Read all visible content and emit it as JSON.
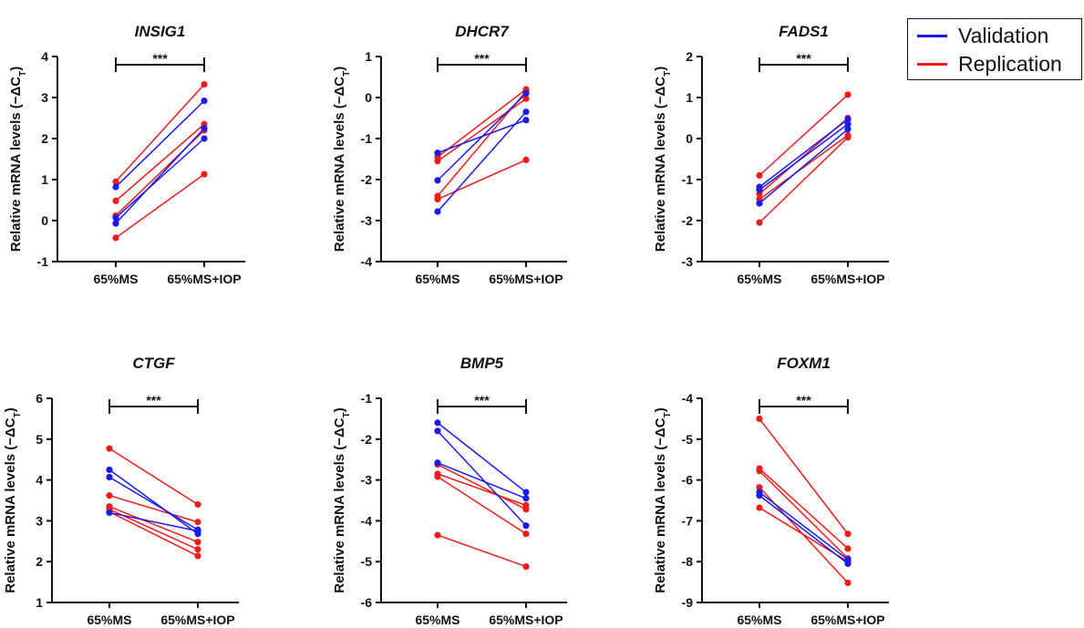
{
  "colors": {
    "validation": "#1a1aee",
    "replication": "#ee1c1c",
    "axis": "#111111"
  },
  "legend": [
    {
      "label": "Validation",
      "color": "#1a1aee"
    },
    {
      "label": "Replication",
      "color": "#ee1c1c"
    }
  ],
  "chart_data": [
    {
      "type": "line",
      "title": "INSIG1",
      "ylabel": "Relative mRNA levels (−ΔC_T)",
      "categories": [
        "65%MS",
        "65%MS+IOP"
      ],
      "ylim": [
        -1,
        4
      ],
      "yticks": [
        -1,
        0,
        1,
        2,
        3,
        4
      ],
      "significance": "***",
      "series": [
        {
          "name": "Validation",
          "lines": [
            [
              0.82,
              2.92
            ],
            [
              0.07,
              2.0
            ],
            [
              -0.07,
              2.25
            ]
          ]
        },
        {
          "name": "Replication",
          "lines": [
            [
              0.95,
              3.32
            ],
            [
              0.48,
              2.35
            ],
            [
              0.12,
              2.2
            ],
            [
              -0.42,
              1.13
            ]
          ]
        }
      ]
    },
    {
      "type": "line",
      "title": "DHCR7",
      "ylabel": "Relative mRNA levels (−ΔC_T)",
      "categories": [
        "65%MS",
        "65%MS+IOP"
      ],
      "ylim": [
        -4,
        1
      ],
      "yticks": [
        -4,
        -3,
        -2,
        -1,
        0,
        1
      ],
      "significance": "***",
      "series": [
        {
          "name": "Validation",
          "lines": [
            [
              -1.35,
              -0.55
            ],
            [
              -2.02,
              0.1
            ],
            [
              -2.78,
              -0.35
            ]
          ]
        },
        {
          "name": "Replication",
          "lines": [
            [
              -1.45,
              0.2
            ],
            [
              -1.55,
              -0.03
            ],
            [
              -2.4,
              0.15
            ],
            [
              -2.48,
              -1.52
            ]
          ]
        }
      ]
    },
    {
      "type": "line",
      "title": "FADS1",
      "ylabel": "Relative mRNA levels (−ΔC_T)",
      "categories": [
        "65%MS",
        "65%MS+IOP"
      ],
      "ylim": [
        -3,
        2
      ],
      "yticks": [
        -3,
        -2,
        -1,
        0,
        1,
        2
      ],
      "significance": "***",
      "series": [
        {
          "name": "Validation",
          "lines": [
            [
              -1.18,
              0.47
            ],
            [
              -1.25,
              0.35
            ],
            [
              -1.58,
              0.23
            ]
          ]
        },
        {
          "name": "Replication",
          "lines": [
            [
              -0.9,
              1.07
            ],
            [
              -1.35,
              0.5
            ],
            [
              -1.48,
              0.08
            ],
            [
              -2.05,
              0.03
            ]
          ]
        }
      ]
    },
    {
      "type": "line",
      "title": "CTGF",
      "ylabel": "Relative mRNA levels (−ΔC_T)",
      "categories": [
        "65%MS",
        "65%MS+IOP"
      ],
      "ylim": [
        1,
        6
      ],
      "yticks": [
        1,
        2,
        3,
        4,
        5,
        6
      ],
      "significance": "***",
      "series": [
        {
          "name": "Validation",
          "lines": [
            [
              4.25,
              2.68
            ],
            [
              4.07,
              2.78
            ],
            [
              3.2,
              2.75
            ]
          ]
        },
        {
          "name": "Replication",
          "lines": [
            [
              4.77,
              3.4
            ],
            [
              3.62,
              2.97
            ],
            [
              3.35,
              2.48
            ],
            [
              3.28,
              2.3
            ],
            [
              3.22,
              2.14
            ]
          ]
        }
      ]
    },
    {
      "type": "line",
      "title": "BMP5",
      "ylabel": "Relative mRNA levels (−ΔC_T)",
      "categories": [
        "65%MS",
        "65%MS+IOP"
      ],
      "ylim": [
        -6,
        -1
      ],
      "yticks": [
        -6,
        -5,
        -4,
        -3,
        -2,
        -1
      ],
      "significance": "***",
      "series": [
        {
          "name": "Validation",
          "lines": [
            [
              -1.6,
              -3.3
            ],
            [
              -1.8,
              -4.12
            ],
            [
              -2.58,
              -3.45
            ]
          ]
        },
        {
          "name": "Replication",
          "lines": [
            [
              -2.62,
              -3.72
            ],
            [
              -2.85,
              -3.62
            ],
            [
              -2.92,
              -4.32
            ],
            [
              -4.35,
              -5.12
            ]
          ]
        }
      ]
    },
    {
      "type": "line",
      "title": "FOXM1",
      "ylabel": "Relative mRNA levels (−ΔC_T)",
      "categories": [
        "65%MS",
        "65%MS+IOP"
      ],
      "ylim": [
        -9,
        -4
      ],
      "yticks": [
        -9,
        -8,
        -7,
        -6,
        -5,
        -4
      ],
      "significance": "***",
      "series": [
        {
          "name": "Validation",
          "lines": [
            [
              -6.3,
              -7.95
            ],
            [
              -6.38,
              -8.05
            ]
          ]
        },
        {
          "name": "Replication",
          "lines": [
            [
              -4.5,
              -7.32
            ],
            [
              -5.72,
              -7.68
            ],
            [
              -5.78,
              -7.92
            ],
            [
              -6.18,
              -8.52
            ],
            [
              -6.68,
              -8.0
            ]
          ]
        }
      ]
    }
  ]
}
